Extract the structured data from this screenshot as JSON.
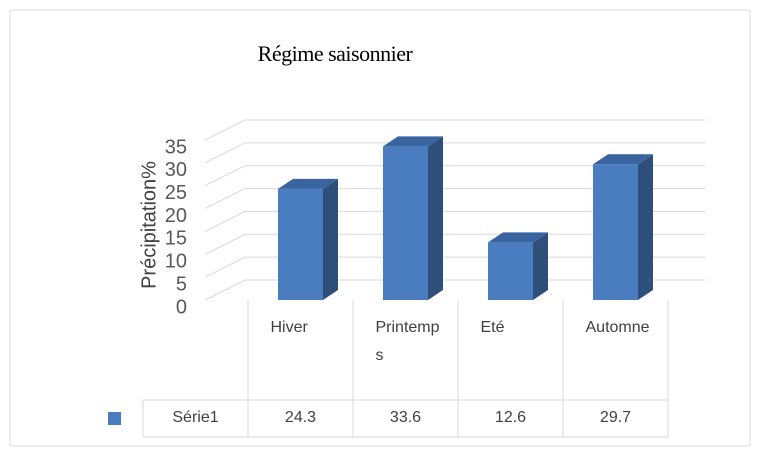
{
  "chart_data": {
    "type": "bar3d",
    "title": "Régime saisonnier",
    "y_label": "Précipitation%",
    "categories": [
      "Hiver",
      "Printemps",
      "Eté",
      "Automne"
    ],
    "series": [
      {
        "name": "Série1",
        "color": "#4a7dc0",
        "values": [
          24.3,
          33.6,
          12.6,
          29.7
        ]
      }
    ],
    "ylim": [
      0,
      35
    ],
    "yticks": [
      0,
      5,
      10,
      15,
      20,
      25,
      30,
      35
    ],
    "grid": true,
    "data_table": true
  }
}
